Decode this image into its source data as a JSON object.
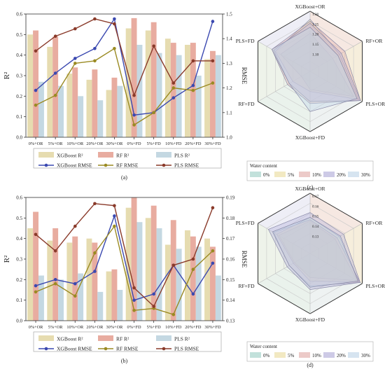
{
  "colors": {
    "xgb_bar": "#e6dcb0",
    "rf_bar": "#e8aca0",
    "pls_bar": "#c4d8e2",
    "xgb_line": "#3a48b0",
    "rf_line": "#9a8a22",
    "pls_line": "#8a3a2a",
    "radar_0": "#a8d4cc",
    "radar_5": "#ece0a8",
    "radar_10": "#e4b4b0",
    "radar_20": "#b8b4dc",
    "radar_30": "#c4d8ea"
  },
  "chart_data": [
    {
      "type": "bar",
      "panel_label": "(a)",
      "categories": [
        "0%+OR",
        "5%+OR",
        "10%+OR",
        "20%+OR",
        "30%+OR",
        "0%+FD",
        "5%+FD",
        "10%+FD",
        "20%+FD",
        "30%+FD"
      ],
      "ylabel": "R²",
      "y2label": "RMSE",
      "ylim": [
        0,
        0.6
      ],
      "yticks": [
        "0.0",
        "0.1",
        "0.2",
        "0.3",
        "0.4",
        "0.5",
        "0.6"
      ],
      "y2lim": [
        1.0,
        1.5
      ],
      "y2ticks": [
        "1.0",
        "1.1",
        "1.2",
        "1.3",
        "1.4",
        "1.5"
      ],
      "series": [
        {
          "name": "XGBoost R²",
          "kind": "bar",
          "values": [
            0.5,
            0.44,
            0.31,
            0.28,
            0.23,
            0.53,
            0.52,
            0.48,
            0.45,
            0.38
          ]
        },
        {
          "name": "RF R²",
          "kind": "bar",
          "values": [
            0.52,
            0.49,
            0.34,
            0.33,
            0.29,
            0.58,
            0.56,
            0.46,
            0.46,
            0.42
          ]
        },
        {
          "name": "PLS R²",
          "kind": "bar",
          "values": [
            0.27,
            0.25,
            0.2,
            0.18,
            0.25,
            0.45,
            0.41,
            0.4,
            0.3,
            0.4
          ]
        },
        {
          "name": "XGBoost RMSE",
          "kind": "line",
          "axis": "right",
          "values": [
            1.19,
            1.26,
            1.32,
            1.36,
            1.48,
            1.09,
            1.1,
            1.16,
            1.21,
            1.47
          ]
        },
        {
          "name": "RF RMSE",
          "kind": "line",
          "axis": "right",
          "values": [
            1.13,
            1.17,
            1.3,
            1.31,
            1.36,
            1.05,
            1.1,
            1.2,
            1.19,
            1.22
          ]
        },
        {
          "name": "PLS RMSE",
          "kind": "line",
          "axis": "right",
          "values": [
            1.35,
            1.41,
            1.44,
            1.48,
            1.46,
            1.17,
            1.37,
            1.22,
            1.31,
            1.31
          ]
        }
      ],
      "legend_placement": "bottom"
    },
    {
      "type": "bar",
      "panel_label": "(b)",
      "categories": [
        "0%+OR",
        "5%+OR",
        "10%+OR",
        "20%+OR",
        "30%+OR",
        "0%+FD",
        "5%+FD",
        "10%+FD",
        "20%+FD",
        "30%+FD"
      ],
      "ylabel": "R²",
      "y2label": "RMSE",
      "ylim": [
        0,
        0.6
      ],
      "yticks": [
        "0.0",
        "0.1",
        "0.2",
        "0.3",
        "0.4",
        "0.5",
        "0.6"
      ],
      "y2lim": [
        0.13,
        0.19
      ],
      "y2ticks": [
        "0.13",
        "0.14",
        "0.15",
        "0.16",
        "0.17",
        "0.18",
        "0.19"
      ],
      "series": [
        {
          "name": "XGBoost R²",
          "kind": "bar",
          "values": [
            0.45,
            0.39,
            0.38,
            0.4,
            0.24,
            0.55,
            0.5,
            0.37,
            0.44,
            0.4
          ]
        },
        {
          "name": "RF R²",
          "kind": "bar",
          "values": [
            0.53,
            0.45,
            0.41,
            0.38,
            0.25,
            0.6,
            0.56,
            0.49,
            0.41,
            0.36
          ]
        },
        {
          "name": "PLS R²",
          "kind": "bar",
          "values": [
            0.22,
            0.2,
            0.23,
            0.14,
            0.15,
            0.48,
            0.45,
            0.35,
            0.36,
            0.22
          ]
        },
        {
          "name": "XGBoost RMSE",
          "kind": "line",
          "axis": "right",
          "values": [
            0.147,
            0.15,
            0.148,
            0.154,
            0.181,
            0.14,
            0.143,
            0.157,
            0.143,
            0.158
          ]
        },
        {
          "name": "RF RMSE",
          "kind": "line",
          "axis": "right",
          "values": [
            0.144,
            0.148,
            0.142,
            0.163,
            0.176,
            0.135,
            0.136,
            0.133,
            0.155,
            0.164
          ]
        },
        {
          "name": "PLS RMSE",
          "kind": "line",
          "axis": "right",
          "values": [
            0.172,
            0.164,
            0.176,
            0.187,
            0.186,
            0.146,
            0.137,
            0.157,
            0.16,
            0.185
          ]
        }
      ],
      "legend_placement": "bottom"
    },
    {
      "type": "radar",
      "panel_label": "(c)",
      "axes": [
        "XGBoost+OR",
        "RF+OR",
        "PLS+OR",
        "XGBoost+FD",
        "RF+FD",
        "PLS+FD"
      ],
      "rlim": [
        1.0,
        1.3
      ],
      "rticks": [
        "1.10",
        "1.15",
        "1.20",
        "1.25",
        "1.30"
      ],
      "legend_title": "Water content",
      "series": [
        {
          "name": "0%",
          "values": [
            1.19,
            1.13,
            1.25,
            1.09,
            1.05,
            1.17
          ]
        },
        {
          "name": "5%",
          "values": [
            1.26,
            1.17,
            1.28,
            1.1,
            1.1,
            1.2
          ]
        },
        {
          "name": "10%",
          "values": [
            1.25,
            1.2,
            1.29,
            1.16,
            1.13,
            1.22
          ]
        },
        {
          "name": "20%",
          "values": [
            1.24,
            1.18,
            1.29,
            1.15,
            1.12,
            1.21
          ]
        },
        {
          "name": "30%",
          "values": [
            1.22,
            1.16,
            1.27,
            1.2,
            1.12,
            1.22
          ]
        }
      ]
    },
    {
      "type": "radar",
      "panel_label": "(d)",
      "axes": [
        "XGBoost+OR",
        "RF+OR",
        "PLS+OR",
        "XGBoost+FD",
        "RF+FD",
        "PLS+FD"
      ],
      "rlim": [
        0.12,
        0.17
      ],
      "rticks": [
        "0.13",
        "0.14",
        "0.15",
        "0.16",
        "0.17"
      ],
      "legend_title": "Water content",
      "series": [
        {
          "name": "0%",
          "values": [
            0.147,
            0.144,
            0.165,
            0.14,
            0.135,
            0.15
          ]
        },
        {
          "name": "5%",
          "values": [
            0.15,
            0.148,
            0.167,
            0.143,
            0.136,
            0.152
          ]
        },
        {
          "name": "10%",
          "values": [
            0.148,
            0.146,
            0.168,
            0.147,
            0.14,
            0.155
          ]
        },
        {
          "name": "20%",
          "values": [
            0.154,
            0.152,
            0.168,
            0.15,
            0.142,
            0.16
          ]
        },
        {
          "name": "30%",
          "values": [
            0.15,
            0.149,
            0.166,
            0.148,
            0.14,
            0.156
          ]
        }
      ]
    }
  ]
}
